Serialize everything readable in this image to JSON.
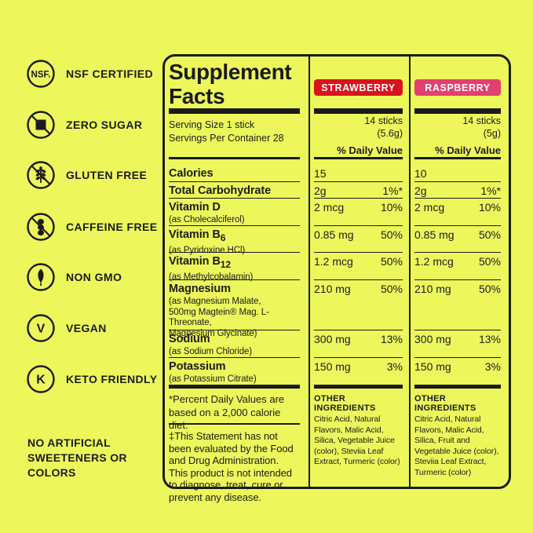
{
  "colors": {
    "background": "#EDF75C",
    "ink": "#1B1B1B",
    "strawberry_badge": "#D9131C",
    "raspberry_badge": "#E2406F",
    "badge_text": "#FFFFFF"
  },
  "sidebar": {
    "items": [
      {
        "icon": "nsf-certified-icon",
        "label": "NSF CERTIFIED"
      },
      {
        "icon": "zero-sugar-icon",
        "label": "ZERO SUGAR"
      },
      {
        "icon": "gluten-free-icon",
        "label": "GLUTEN FREE"
      },
      {
        "icon": "caffeine-free-icon",
        "label": "CAFFEINE FREE"
      },
      {
        "icon": "non-gmo-icon",
        "label": "NON GMO"
      },
      {
        "icon": "vegan-icon",
        "label": "VEGAN"
      },
      {
        "icon": "keto-friendly-icon",
        "label": "KETO FRIENDLY"
      }
    ],
    "note": "NO ARTIFICIAL\nSWEETENERS OR\nCOLORS"
  },
  "panel": {
    "title": "Supplement\nFacts",
    "serving_size": "Serving Size 1 stick",
    "servings_per_container": "Servings Per Container 28",
    "daily_value_header": "% Daily Value",
    "columns": [
      {
        "name": "STRAWBERRY",
        "badge_color": "#D9131C",
        "sticks": "14 sticks\n(5.6g)",
        "other_ingredients_header": "OTHER INGREDIENTS",
        "other_ingredients": "Citric Acid, Natural Flavors, Malic Acid, Silica, Vegetable Juice (color), Steviia Leaf Extract, Turmeric (color)"
      },
      {
        "name": "RASPBERRY",
        "badge_color": "#E2406F",
        "sticks": "14 sticks\n(5g)",
        "other_ingredients_header": "OTHER INGREDIENTS",
        "other_ingredients": "Citric Acid, Natural Flavors, Malic Acid, Silica, Fruit and Vegetable Juice (color), Steviia Leaf Extract, Turmeric (color)"
      }
    ],
    "rows": [
      {
        "label": "Calories",
        "label_subscript": "",
        "sub": "",
        "values": [
          {
            "amount": "15",
            "dv": ""
          },
          {
            "amount": "10",
            "dv": ""
          }
        ]
      },
      {
        "label": "Total Carbohydrate",
        "label_subscript": "",
        "sub": "",
        "values": [
          {
            "amount": "2g",
            "dv": "1%*"
          },
          {
            "amount": "2g",
            "dv": "1%*"
          }
        ]
      },
      {
        "label": "Vitamin D",
        "label_subscript": "",
        "sub": "(as Cholecalciferol)",
        "values": [
          {
            "amount": "2 mcg",
            "dv": "10%"
          },
          {
            "amount": "2 mcg",
            "dv": "10%"
          }
        ]
      },
      {
        "label": "Vitamin B",
        "label_subscript": "6",
        "sub": "(as Pyridoxine HCl)",
        "values": [
          {
            "amount": "0.85 mg",
            "dv": "50%"
          },
          {
            "amount": "0.85 mg",
            "dv": "50%"
          }
        ]
      },
      {
        "label": "Vitamin B",
        "label_subscript": "12",
        "sub": "(as Methylcobalamin)",
        "values": [
          {
            "amount": "1.2 mcg",
            "dv": "50%"
          },
          {
            "amount": "1.2 mcg",
            "dv": "50%"
          }
        ]
      },
      {
        "label": "Magnesium",
        "label_subscript": "",
        "sub": "(as Magnesium Malate,\n500mg Magtein® Mag. L-Threonate,\nMagnesium Glycinate)",
        "values": [
          {
            "amount": "210 mg",
            "dv": "50%"
          },
          {
            "amount": "210 mg",
            "dv": "50%"
          }
        ]
      },
      {
        "label": "Sodium",
        "label_subscript": "",
        "sub": "(as Sodium Chloride)",
        "values": [
          {
            "amount": "300 mg",
            "dv": "13%"
          },
          {
            "amount": "300 mg",
            "dv": "13%"
          }
        ]
      },
      {
        "label": "Potassium",
        "label_subscript": "",
        "sub": "(as Potassium Citrate)",
        "values": [
          {
            "amount": "150 mg",
            "dv": "3%"
          },
          {
            "amount": "150 mg",
            "dv": "3%"
          }
        ]
      }
    ],
    "footnote": "*Percent Daily Values are\nbased on a 2,000 calorie diet.",
    "disclaimer": "‡This Statement has not been evaluated by the Food and Drug Administration. This product is not intended to diagnose, treat, cure or prevent any disease."
  }
}
